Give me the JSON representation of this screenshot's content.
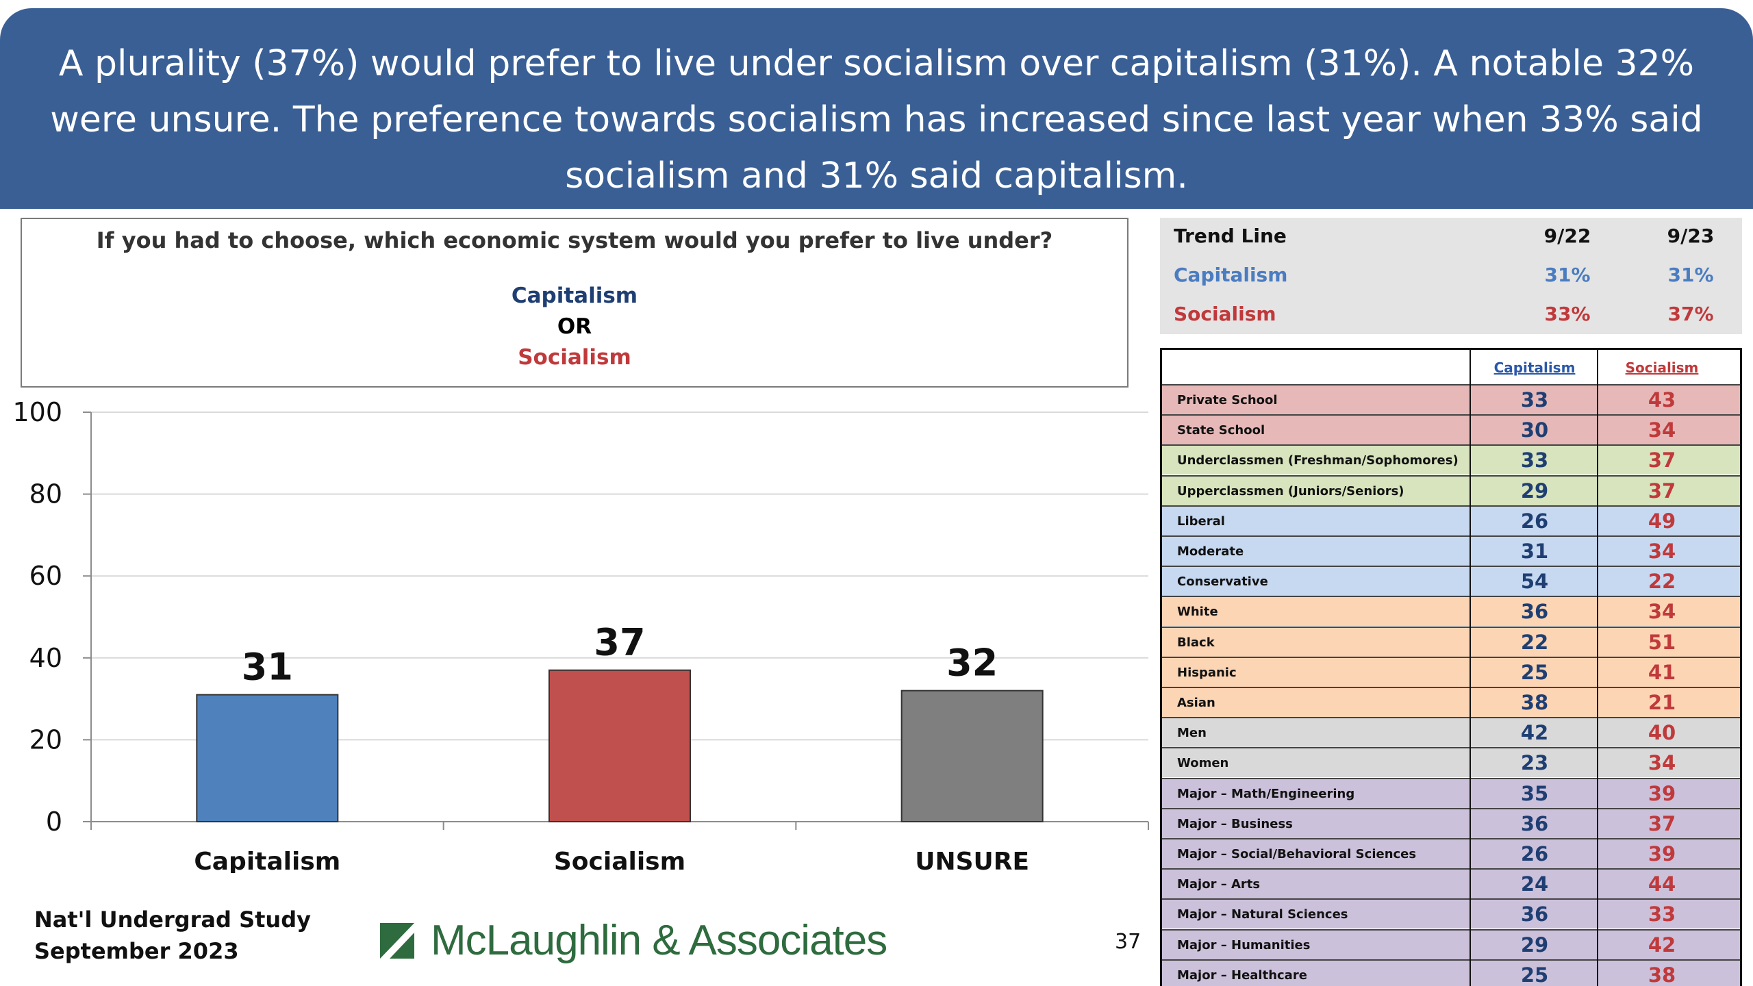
{
  "header": {
    "text": "A plurality (37%) would prefer to live under socialism over capitalism (31%). A notable 32% were unsure. The preference towards socialism has increased since last year when 33% said socialism and 31% said capitalism."
  },
  "question": {
    "text": "If you had to choose, which economic system would you prefer to live under?",
    "option_1": "Capitalism",
    "or": "OR",
    "option_2": "Socialism"
  },
  "chart_data": {
    "type": "bar",
    "categories": [
      "Capitalism",
      "Socialism",
      "UNSURE"
    ],
    "values": [
      31,
      37,
      32
    ],
    "colors": [
      "#4f81bd",
      "#c0504d",
      "#7f7f7f"
    ],
    "ylim": [
      0,
      100
    ],
    "yticks": [
      "0",
      "20",
      "40",
      "60",
      "80",
      "100"
    ],
    "grid": true
  },
  "footer": {
    "study_line1": "Nat'l Undergrad Study",
    "study_line2": "September 2023",
    "logo_text": "McLaughlin & Associates",
    "page_number": "37"
  },
  "trend": {
    "title": "Trend Line",
    "col1": "9/22",
    "col2": "9/23",
    "rows": [
      {
        "label": "Capitalism",
        "v1": "31%",
        "v2": "31%"
      },
      {
        "label": "Socialism",
        "v1": "33%",
        "v2": "37%"
      }
    ]
  },
  "demographics": {
    "col_capitalism": "Capitalism",
    "col_socialism": "Socialism",
    "rows": [
      {
        "label": "Private School",
        "cap": "33",
        "soc": "43",
        "color": "#e6b9b8"
      },
      {
        "label": "State School",
        "cap": "30",
        "soc": "34",
        "color": "#e6b9b8"
      },
      {
        "label": "Underclassmen (Freshman/Sophomores)",
        "cap": "33",
        "soc": "37",
        "color": "#d7e4bd"
      },
      {
        "label": "Upperclassmen (Juniors/Seniors)",
        "cap": "29",
        "soc": "37",
        "color": "#d7e4bd"
      },
      {
        "label": "Liberal",
        "cap": "26",
        "soc": "49",
        "color": "#c6d9f1"
      },
      {
        "label": "Moderate",
        "cap": "31",
        "soc": "34",
        "color": "#c6d9f1"
      },
      {
        "label": "Conservative",
        "cap": "54",
        "soc": "22",
        "color": "#c6d9f1"
      },
      {
        "label": "White",
        "cap": "36",
        "soc": "34",
        "color": "#fcd5b5"
      },
      {
        "label": "Black",
        "cap": "22",
        "soc": "51",
        "color": "#fcd5b5"
      },
      {
        "label": "Hispanic",
        "cap": "25",
        "soc": "41",
        "color": "#fcd5b5"
      },
      {
        "label": "Asian",
        "cap": "38",
        "soc": "21",
        "color": "#fcd5b5"
      },
      {
        "label": "Men",
        "cap": "42",
        "soc": "40",
        "color": "#d9d9d9"
      },
      {
        "label": "Women",
        "cap": "23",
        "soc": "34",
        "color": "#d9d9d9"
      },
      {
        "label": "Major – Math/Engineering",
        "cap": "35",
        "soc": "39",
        "color": "#ccc1da"
      },
      {
        "label": "Major – Business",
        "cap": "36",
        "soc": "37",
        "color": "#ccc1da"
      },
      {
        "label": "Major – Social/Behavioral Sciences",
        "cap": "26",
        "soc": "39",
        "color": "#ccc1da"
      },
      {
        "label": "Major – Arts",
        "cap": "24",
        "soc": "44",
        "color": "#ccc1da"
      },
      {
        "label": "Major – Natural Sciences",
        "cap": "36",
        "soc": "33",
        "color": "#ccc1da"
      },
      {
        "label": "Major – Humanities",
        "cap": "29",
        "soc": "42",
        "color": "#ccc1da"
      },
      {
        "label": "Major – Healthcare",
        "cap": "25",
        "soc": "38",
        "color": "#ccc1da"
      }
    ]
  }
}
